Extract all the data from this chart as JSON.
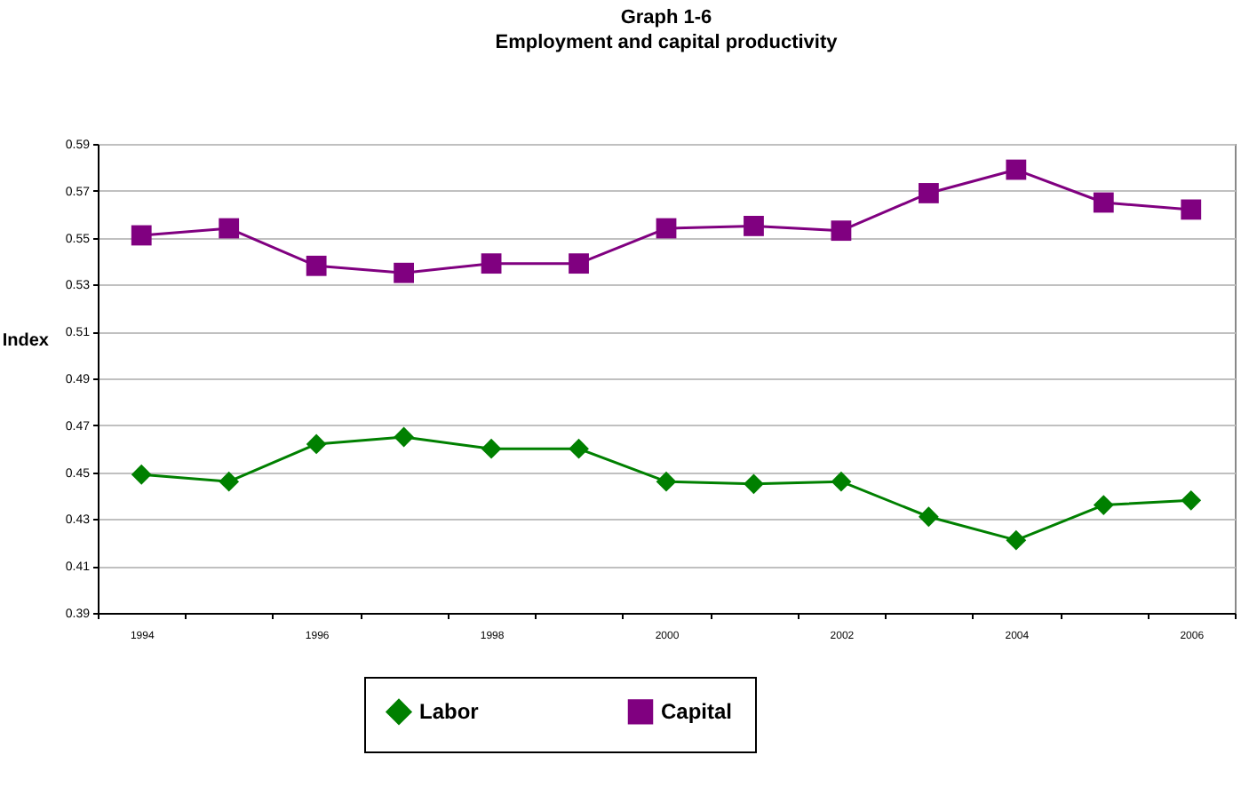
{
  "chart_data": {
    "type": "line",
    "title": "Graph 1-6",
    "subtitle": "Employment and capital productivity",
    "ylabel": "Index",
    "categories": [
      "1994",
      null,
      "1996",
      null,
      "1998",
      null,
      "2000",
      null,
      "2002",
      null,
      "2004",
      null,
      "2006"
    ],
    "series": [
      {
        "name": "Labor",
        "color": "#008000",
        "marker": "diamond",
        "values": [
          0.449,
          0.446,
          0.462,
          0.465,
          0.46,
          0.46,
          0.446,
          0.445,
          0.446,
          0.431,
          0.421,
          0.436,
          0.438
        ]
      },
      {
        "name": "Capital",
        "color": "#800080",
        "marker": "square",
        "values": [
          0.551,
          0.554,
          0.538,
          0.535,
          0.539,
          0.539,
          0.554,
          0.555,
          0.553,
          0.569,
          0.579,
          0.565,
          0.562
        ]
      }
    ],
    "ylim": [
      0.39,
      0.59
    ],
    "yticks": [
      0.39,
      0.41,
      0.43,
      0.45,
      0.47,
      0.49,
      0.51,
      0.53,
      0.55,
      0.57,
      0.59
    ],
    "grid": "y",
    "legend": "bottom"
  }
}
